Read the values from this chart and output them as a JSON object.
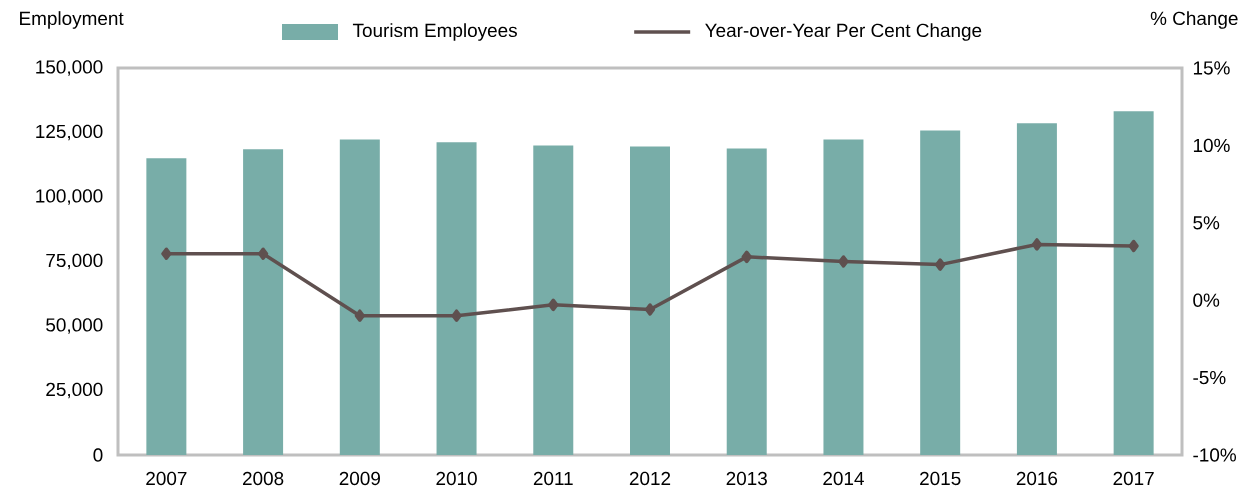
{
  "chart_data": {
    "type": "bar",
    "ylabel": "Employment",
    "y2label": "% Change",
    "legend": "top",
    "marker": "diamond",
    "categories": [
      "2007",
      "2008",
      "2009",
      "2010",
      "2011",
      "2012",
      "2013",
      "2014",
      "2015",
      "2016",
      "2017"
    ],
    "series": [
      {
        "name": "Tourism Employees",
        "color": "#78ada8",
        "values": [
          115000,
          118500,
          122300,
          121200,
          120000,
          119600,
          118800,
          122300,
          125800,
          128600,
          133200
        ]
      },
      {
        "name": "Year-over-Year Per Cent Change",
        "type": "line",
        "axis": "y2",
        "color": "#5f504f",
        "values": [
          3.0,
          3.0,
          -1.0,
          -1.0,
          -0.3,
          -0.6,
          2.8,
          2.5,
          2.3,
          3.6,
          3.5
        ]
      }
    ],
    "ylim": [
      0,
      150000
    ],
    "yticks": [
      0,
      {
        "value": 25000,
        "label": "25,000"
      },
      {
        "value": 50000,
        "label": "50,000"
      },
      {
        "value": 75000,
        "label": "75,000"
      },
      {
        "value": 100000,
        "label": "100,000"
      },
      {
        "value": 125000,
        "label": "125,000"
      },
      {
        "value": 150000,
        "label": "150,000"
      }
    ],
    "y2lim": [
      -10,
      15
    ],
    "y2ticks": [
      {
        "value": -10,
        "label": "-10%"
      },
      {
        "value": -5,
        "label": "-5%"
      },
      {
        "value": 0,
        "label": "0%"
      },
      {
        "value": 5,
        "label": "5%"
      },
      {
        "value": 10,
        "label": "10%"
      },
      {
        "value": 15,
        "label": "15%"
      }
    ]
  }
}
